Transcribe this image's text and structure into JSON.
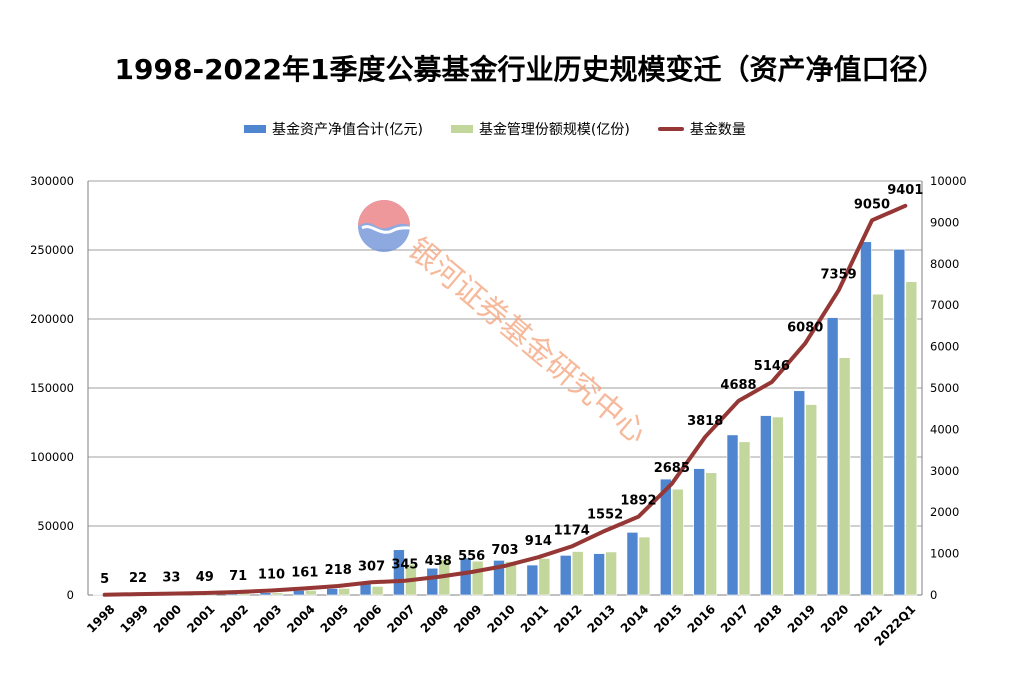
{
  "title": "1998-2022年1季度公募基金行业历史规模变迁（资产净值口径）",
  "watermark": "银河证券基金研究中心",
  "colors": {
    "nav_bar": "#4f86cf",
    "share_bar": "#c3d69b",
    "count_line": "#953735",
    "grid": "#a0a0a0"
  },
  "chart_data": {
    "type": "bar",
    "categories": [
      "1998",
      "1999",
      "2000",
      "2001",
      "2002",
      "2003",
      "2004",
      "2005",
      "2006",
      "2007",
      "2008",
      "2009",
      "2010",
      "2011",
      "2012",
      "2013",
      "2014",
      "2015",
      "2016",
      "2017",
      "2018",
      "2019",
      "2020",
      "2021",
      "2022Q1"
    ],
    "series": [
      {
        "name": "基金资产净值合计(亿元)",
        "type": "bar",
        "axis": "left",
        "values": [
          100,
          500,
          850,
          800,
          1300,
          1700,
          3300,
          4700,
          8600,
          32800,
          19400,
          26800,
          25100,
          21700,
          28700,
          30000,
          45400,
          84000,
          91600,
          116000,
          130000,
          148000,
          201000,
          256000,
          250500
        ]
      },
      {
        "name": "基金管理份额规模(亿份)",
        "type": "bar",
        "axis": "left",
        "values": [
          100,
          500,
          500,
          800,
          1300,
          1600,
          3300,
          4800,
          6200,
          22300,
          25800,
          24500,
          24200,
          26500,
          31500,
          31200,
          42000,
          76700,
          88600,
          111000,
          129000,
          138000,
          172000,
          218000,
          227000
        ]
      },
      {
        "name": "基金数量",
        "type": "line",
        "axis": "right",
        "values": [
          5,
          22,
          33,
          49,
          71,
          110,
          161,
          218,
          307,
          345,
          438,
          556,
          703,
          914,
          1174,
          1552,
          1892,
          2685,
          3818,
          4688,
          5146,
          6080,
          7359,
          9050,
          9401
        ],
        "labels": [
          "5",
          "22",
          "33",
          "49",
          "71",
          "110",
          "161",
          "218",
          "307",
          "345",
          "438",
          "556",
          "703",
          "914",
          "1174",
          "1552",
          "1892",
          "2685",
          "3818",
          "4688",
          "5146",
          "6080",
          "7359",
          "9050",
          "9401"
        ]
      }
    ],
    "left_axis": {
      "ylim": [
        0,
        300000
      ],
      "ticks": [
        "0",
        "50000",
        "100000",
        "150000",
        "200000",
        "250000",
        "300000"
      ],
      "tick_values": [
        0,
        50000,
        100000,
        150000,
        200000,
        250000,
        300000
      ]
    },
    "right_axis": {
      "ylim": [
        0,
        10000
      ],
      "ticks": [
        "0",
        "1000",
        "2000",
        "3000",
        "4000",
        "5000",
        "6000",
        "7000",
        "8000",
        "9000",
        "10000"
      ],
      "tick_values": [
        0,
        1000,
        2000,
        3000,
        4000,
        5000,
        6000,
        7000,
        8000,
        9000,
        10000
      ]
    },
    "grid": true,
    "legend_position": "top"
  }
}
